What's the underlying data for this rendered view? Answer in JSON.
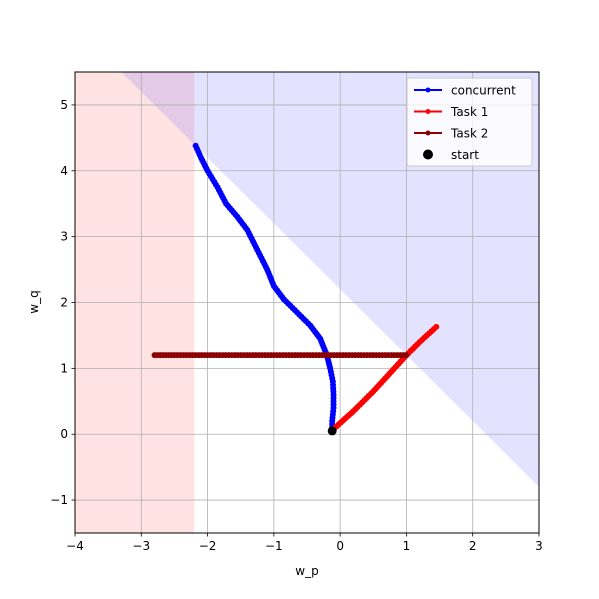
{
  "chart_data": {
    "type": "line",
    "title": "",
    "xlabel": "w_p",
    "ylabel": "w_q",
    "xlim": [
      -4,
      3
    ],
    "ylim": [
      -1.5,
      5.5
    ],
    "x_ticks": [
      -4,
      -3,
      -2,
      -1,
      0,
      1,
      2,
      3
    ],
    "y_ticks": [
      -1,
      0,
      1,
      2,
      3,
      4,
      5
    ],
    "x_tick_labels": [
      "−4",
      "−3",
      "−2",
      "−1",
      "0",
      "1",
      "2",
      "3"
    ],
    "y_tick_labels": [
      "−1",
      "0",
      "1",
      "2",
      "3",
      "4",
      "5"
    ],
    "grid": true,
    "legend_position": "top-right",
    "regions": [
      {
        "type": "half-plane",
        "condition": "w_p < -2.2",
        "color": "#ff0000",
        "opacity": 0.11
      },
      {
        "type": "half-plane",
        "condition": "w_p + w_q > 2.2",
        "color": "#0000ff",
        "opacity": 0.11
      }
    ],
    "series": [
      {
        "name": "concurrent",
        "color": "#0000ff",
        "points": [
          [
            -0.12,
            0.06
          ],
          [
            -0.12,
            0.2
          ],
          [
            -0.1,
            0.4
          ],
          [
            -0.1,
            0.6
          ],
          [
            -0.11,
            0.8
          ],
          [
            -0.15,
            1.0
          ],
          [
            -0.2,
            1.2
          ],
          [
            -0.3,
            1.45
          ],
          [
            -0.45,
            1.65
          ],
          [
            -0.65,
            1.85
          ],
          [
            -0.85,
            2.05
          ],
          [
            -1.0,
            2.25
          ],
          [
            -1.1,
            2.5
          ],
          [
            -1.25,
            2.8
          ],
          [
            -1.4,
            3.1
          ],
          [
            -1.55,
            3.3
          ],
          [
            -1.72,
            3.5
          ],
          [
            -1.85,
            3.75
          ],
          [
            -2.0,
            4.0
          ],
          [
            -2.1,
            4.2
          ],
          [
            -2.18,
            4.38
          ]
        ]
      },
      {
        "name": "Task 1",
        "color": "#ff0000",
        "points": [
          [
            -0.12,
            0.06
          ],
          [
            0.2,
            0.35
          ],
          [
            0.5,
            0.65
          ],
          [
            0.8,
            0.98
          ],
          [
            1.0,
            1.2
          ],
          [
            1.2,
            1.4
          ],
          [
            1.45,
            1.63
          ]
        ]
      },
      {
        "name": "Task 2",
        "color": "#8b0000",
        "points": [
          [
            1.0,
            1.2
          ],
          [
            0.5,
            1.2
          ],
          [
            0.0,
            1.2
          ],
          [
            -0.5,
            1.2
          ],
          [
            -1.0,
            1.2
          ],
          [
            -1.5,
            1.2
          ],
          [
            -2.0,
            1.2
          ],
          [
            -2.5,
            1.2
          ],
          [
            -2.8,
            1.2
          ]
        ]
      }
    ],
    "start_point": {
      "name": "start",
      "x": -0.12,
      "y": 0.05,
      "color": "#000000"
    },
    "legend": [
      {
        "label": "concurrent",
        "color": "#0000ff",
        "marker": "line"
      },
      {
        "label": "Task 1",
        "color": "#ff0000",
        "marker": "line"
      },
      {
        "label": "Task 2",
        "color": "#8b0000",
        "marker": "line"
      },
      {
        "label": "start",
        "color": "#000000",
        "marker": "dot"
      }
    ]
  }
}
